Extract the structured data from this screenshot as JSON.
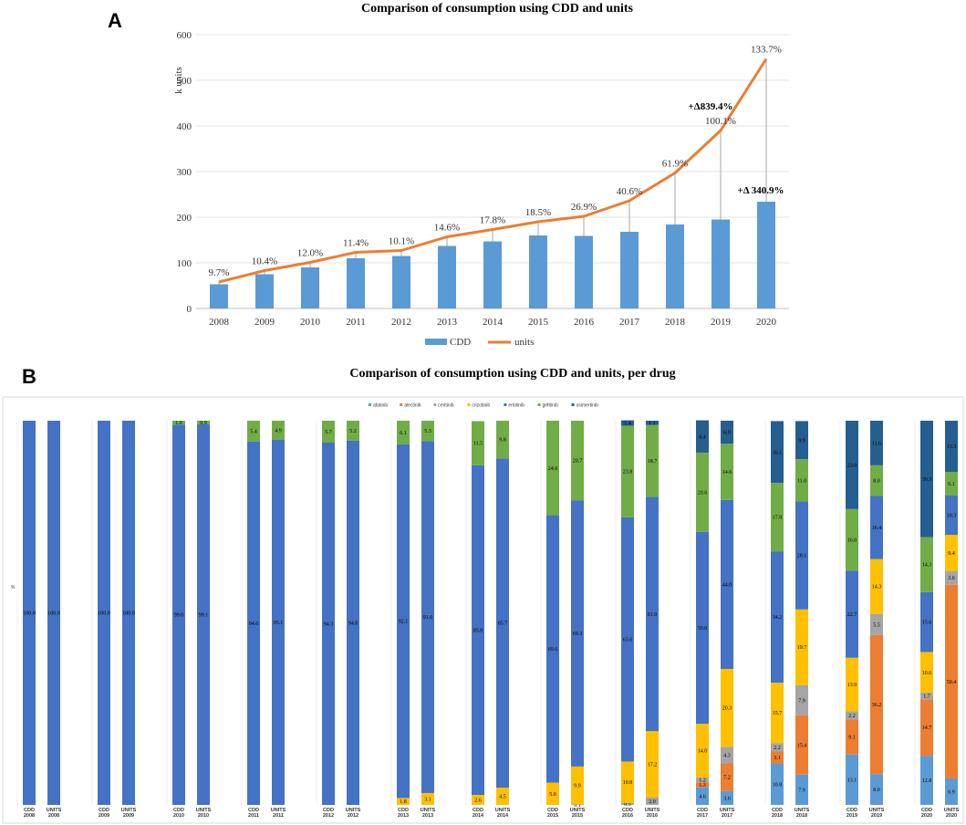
{
  "panels": {
    "a": "A",
    "b": "B"
  },
  "chart_data": [
    {
      "type": "bar",
      "title": "Comparison of consumption using CDD and units",
      "xlabel": "",
      "ylabel": "k units",
      "ylim": [
        0,
        600
      ],
      "yticks": [
        "0",
        "100",
        "200",
        "300",
        "400",
        "500",
        "600"
      ],
      "categories": [
        "2008",
        "2009",
        "2010",
        "2011",
        "2012",
        "2013",
        "2014",
        "2015",
        "2016",
        "2017",
        "2018",
        "2019",
        "2020"
      ],
      "series": [
        {
          "name": "CDD",
          "type": "bar",
          "color": "#5B9BD5",
          "values": [
            53,
            75,
            90,
            110,
            115,
            137,
            147,
            160,
            159,
            168,
            184,
            195,
            234
          ]
        },
        {
          "name": "units",
          "type": "line",
          "color": "#ED7D31",
          "values": [
            58,
            83,
            101,
            123,
            127,
            157,
            173,
            190,
            202,
            236,
            297,
            390,
            547
          ]
        }
      ],
      "annotations": {
        "percent_labels": [
          "9.7%",
          "10.4%",
          "12.0%",
          "11.4%",
          "10.1%",
          "14.6%",
          "17.8%",
          "18.5%",
          "26.9%",
          "40.6%",
          "61.9%",
          "100.1%",
          "133.7%"
        ],
        "deltas": [
          {
            "text": "+Δ839.4%",
            "category": "2019"
          },
          {
            "text": "+Δ 340.9%",
            "category": "2020"
          }
        ]
      },
      "legend": {
        "position": "bottom",
        "entries": [
          "CDD",
          "units"
        ]
      }
    },
    {
      "type": "bar",
      "stacked": true,
      "percent": true,
      "title": "Comparison of consumption using CDD and units, per drug",
      "ylabel": "%",
      "legend": {
        "position": "top",
        "entries": [
          "afatinib",
          "alectinib",
          "ceritinib",
          "crizotinib",
          "erlotinib",
          "gefitinib",
          "osimertinib"
        ]
      },
      "colors": {
        "afatinib": "#5B9BD5",
        "alectinib": "#ED7D31",
        "ceritinib": "#A5A5A5",
        "crizotinib": "#FFC000",
        "erlotinib": "#4472C4",
        "gefitinib": "#70AD47",
        "osimertinib": "#255E91"
      },
      "groups": [
        {
          "year": "2008",
          "bars": [
            {
              "label": "CDD",
              "values": [
                0,
                0,
                0,
                0,
                100.0,
                0,
                0
              ]
            },
            {
              "label": "UNITS",
              "values": [
                0,
                0,
                0,
                0,
                100.0,
                0,
                0
              ]
            }
          ]
        },
        {
          "year": "2009",
          "bars": [
            {
              "label": "CDD",
              "values": [
                0,
                0,
                0,
                0,
                100.0,
                0,
                0
              ]
            },
            {
              "label": "UNITS",
              "values": [
                0,
                0,
                0,
                0,
                100.0,
                0,
                0
              ]
            }
          ]
        },
        {
          "year": "2010",
          "bars": [
            {
              "label": "CDD",
              "values": [
                0,
                0,
                0,
                0,
                99.0,
                1.0,
                0
              ]
            },
            {
              "label": "UNITS",
              "values": [
                0,
                0,
                0,
                0,
                99.1,
                0.9,
                0
              ]
            }
          ]
        },
        {
          "year": "2011",
          "bars": [
            {
              "label": "CDD",
              "values": [
                0,
                0,
                0,
                0,
                94.6,
                5.4,
                0
              ]
            },
            {
              "label": "UNITS",
              "values": [
                0,
                0,
                0,
                0,
                95.1,
                4.9,
                0
              ]
            }
          ]
        },
        {
          "year": "2012",
          "bars": [
            {
              "label": "CDD",
              "values": [
                0,
                0,
                0,
                0,
                94.3,
                5.7,
                0
              ]
            },
            {
              "label": "UNITS",
              "values": [
                0,
                0,
                0,
                0,
                94.8,
                5.2,
                0
              ]
            }
          ]
        },
        {
          "year": "2013",
          "bars": [
            {
              "label": "CDD",
              "values": [
                0,
                0,
                0,
                1.8,
                92.1,
                6.1,
                0
              ]
            },
            {
              "label": "UNITS",
              "values": [
                0,
                0,
                0,
                3.1,
                91.6,
                5.3,
                0
              ]
            }
          ]
        },
        {
          "year": "2014",
          "bars": [
            {
              "label": "CDD",
              "values": [
                0,
                0,
                0,
                2.6,
                85.8,
                11.5,
                0
              ]
            },
            {
              "label": "UNITS",
              "values": [
                0,
                0,
                0,
                4.5,
                85.7,
                9.8,
                0
              ]
            }
          ]
        },
        {
          "year": "2015",
          "bars": [
            {
              "label": "CDD",
              "values": [
                0,
                0,
                0,
                5.8,
                69.6,
                24.6,
                0
              ]
            },
            {
              "label": "UNITS",
              "values": [
                0,
                0,
                0.1,
                9.9,
                69.3,
                20.7,
                0
              ]
            }
          ]
        },
        {
          "year": "2016",
          "bars": [
            {
              "label": "CDD",
              "values": [
                0,
                0,
                0.5,
                10.8,
                63.6,
                23.8,
                1.4
              ]
            },
            {
              "label": "UNITS",
              "values": [
                0,
                0,
                2.0,
                17.2,
                61.0,
                18.7,
                1.1
              ]
            }
          ]
        },
        {
          "year": "2017",
          "bars": [
            {
              "label": "CDD",
              "values": [
                4.6,
                1.3,
                1.2,
                14.0,
                50.0,
                20.6,
                8.4
              ]
            },
            {
              "label": "UNITS",
              "values": [
                3.6,
                7.2,
                4.3,
                20.3,
                44.0,
                14.6,
                6.0
              ]
            }
          ]
        },
        {
          "year": "2018",
          "bars": [
            {
              "label": "CDD",
              "values": [
                10.8,
                3.1,
                2.2,
                15.7,
                34.2,
                17.8,
                16.1
              ]
            },
            {
              "label": "UNITS",
              "values": [
                7.9,
                15.4,
                7.9,
                19.7,
                28.1,
                11.0,
                9.9
              ]
            }
          ]
        },
        {
          "year": "2019",
          "bars": [
            {
              "label": "CDD",
              "values": [
                13.1,
                9.1,
                2.2,
                13.9,
                22.7,
                16.0,
                23.0
              ]
            },
            {
              "label": "UNITS",
              "values": [
                8.0,
                36.2,
                5.5,
                14.3,
                16.4,
                8.0,
                11.6
              ]
            }
          ]
        },
        {
          "year": "2020",
          "bars": [
            {
              "label": "CDD",
              "values": [
                12.8,
                14.7,
                1.7,
                10.6,
                15.6,
                14.3,
                30.3
              ]
            },
            {
              "label": "UNITS",
              "values": [
                6.9,
                50.4,
                3.6,
                9.4,
                10.3,
                6.1,
                13.3
              ]
            }
          ]
        }
      ]
    }
  ]
}
